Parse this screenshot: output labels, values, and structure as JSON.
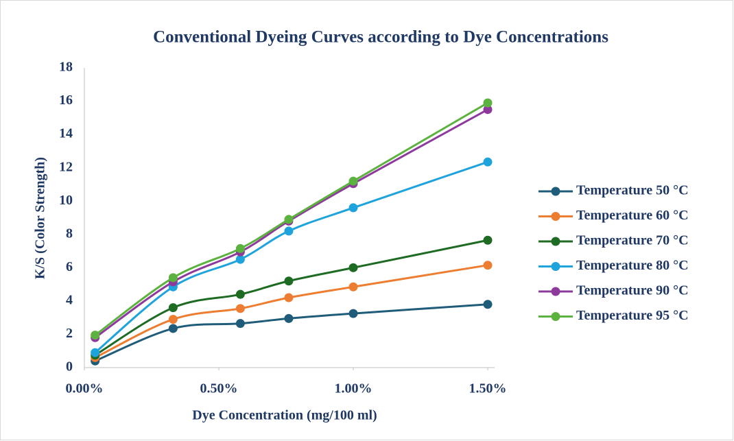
{
  "chart_data": {
    "type": "line",
    "title": "Conventional Dyeing Curves according to Dye Concentrations",
    "x_label": "Dye Concentration (mg/100 ml)",
    "y_label": "K/S  (Color Strength)",
    "x": [
      0.04,
      0.33,
      0.58,
      0.76,
      1.0,
      1.5
    ],
    "xlim": [
      0,
      1.5
    ],
    "xticks": [
      {
        "value": 0,
        "label": "0.00%"
      },
      {
        "value": 0.5,
        "label": "0.50%"
      },
      {
        "value": 1.0,
        "label": "1.00%"
      },
      {
        "value": 1.5,
        "label": "1.50%"
      }
    ],
    "ylim": [
      0,
      18
    ],
    "yticks": [
      0,
      2,
      4,
      6,
      8,
      10,
      12,
      14,
      16,
      18
    ],
    "grid": false,
    "smooth": true,
    "legend": "right",
    "series": [
      {
        "name": "Temperature 50 °C",
        "color": "#1f5c7a",
        "values": [
          0.4,
          2.35,
          2.65,
          2.95,
          3.25,
          3.8
        ]
      },
      {
        "name": "Temperature 60 °C",
        "color": "#ed7d31",
        "values": [
          0.6,
          2.9,
          3.55,
          4.2,
          4.85,
          6.15
        ]
      },
      {
        "name": "Temperature 70 °C",
        "color": "#1e6b23",
        "values": [
          0.75,
          3.6,
          4.4,
          5.2,
          6.0,
          7.65
        ]
      },
      {
        "name": "Temperature 80 °C",
        "color": "#1ea3dc",
        "values": [
          0.9,
          4.85,
          6.5,
          8.2,
          9.6,
          12.35
        ]
      },
      {
        "name": "Temperature 90 °C",
        "color": "#8e3a9d",
        "values": [
          1.8,
          5.15,
          6.95,
          8.8,
          11.05,
          15.5
        ]
      },
      {
        "name": "Temperature 95 °C",
        "color": "#5cb23e",
        "values": [
          1.95,
          5.4,
          7.15,
          8.9,
          11.2,
          15.9
        ]
      }
    ]
  }
}
